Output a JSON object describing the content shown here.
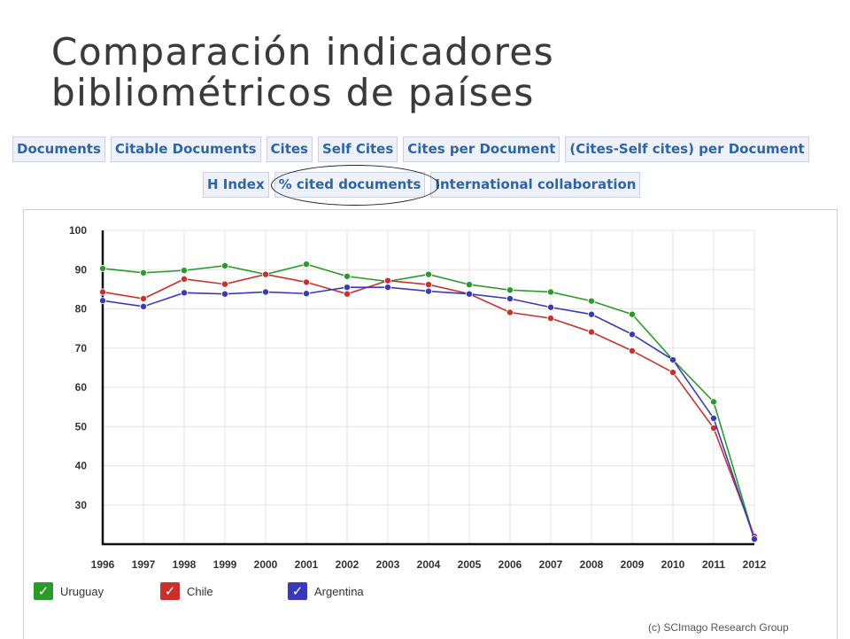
{
  "title": {
    "line1": "Comparación indicadores",
    "line2": "bibliométricos de países"
  },
  "tabs_row1": [
    "Documents",
    "Citable Documents",
    "Cites",
    "Self Cites",
    "Cites per Document",
    "(Cites-Self cites) per Document"
  ],
  "tabs_row2": [
    "H Index",
    "% cited documents",
    "International collaboration"
  ],
  "selected_tab": "% cited documents",
  "legend": {
    "check_glyph": "✓",
    "items": [
      {
        "label": "Uruguay",
        "color": "#2a9a2a"
      },
      {
        "label": "Chile",
        "color": "#c9302c"
      },
      {
        "label": "Argentina",
        "color": "#3a3ab8"
      }
    ]
  },
  "credit": "(c) SCImago Research Group",
  "chart_data": {
    "type": "line",
    "categories": [
      "1996",
      "1997",
      "1998",
      "1999",
      "2000",
      "2001",
      "2002",
      "2003",
      "2004",
      "2005",
      "2006",
      "2007",
      "2008",
      "2009",
      "2010",
      "2011",
      "2012"
    ],
    "yticks": [
      30,
      40,
      50,
      60,
      70,
      80,
      90,
      100
    ],
    "ylim": [
      20,
      100
    ],
    "grid": true,
    "legend_position": "bottom-left",
    "series": [
      {
        "name": "Uruguay",
        "color": "#2a9a2a",
        "values": [
          90.3,
          89.2,
          89.8,
          91.0,
          88.8,
          91.4,
          88.3,
          87.0,
          88.8,
          86.2,
          84.8,
          84.3,
          82.0,
          78.6,
          67.0,
          56.3,
          21.3
        ]
      },
      {
        "name": "Chile",
        "color": "#c9302c",
        "values": [
          84.3,
          82.6,
          87.6,
          86.3,
          88.8,
          86.8,
          83.8,
          87.2,
          86.2,
          83.8,
          79.1,
          77.6,
          74.1,
          69.3,
          63.8,
          49.6,
          22.0
        ]
      },
      {
        "name": "Argentina",
        "color": "#3a3ab8",
        "values": [
          82.1,
          80.6,
          84.1,
          83.8,
          84.3,
          83.9,
          85.5,
          85.5,
          84.5,
          83.8,
          82.6,
          80.4,
          78.6,
          73.5,
          67.0,
          52.1,
          21.3
        ]
      }
    ]
  }
}
